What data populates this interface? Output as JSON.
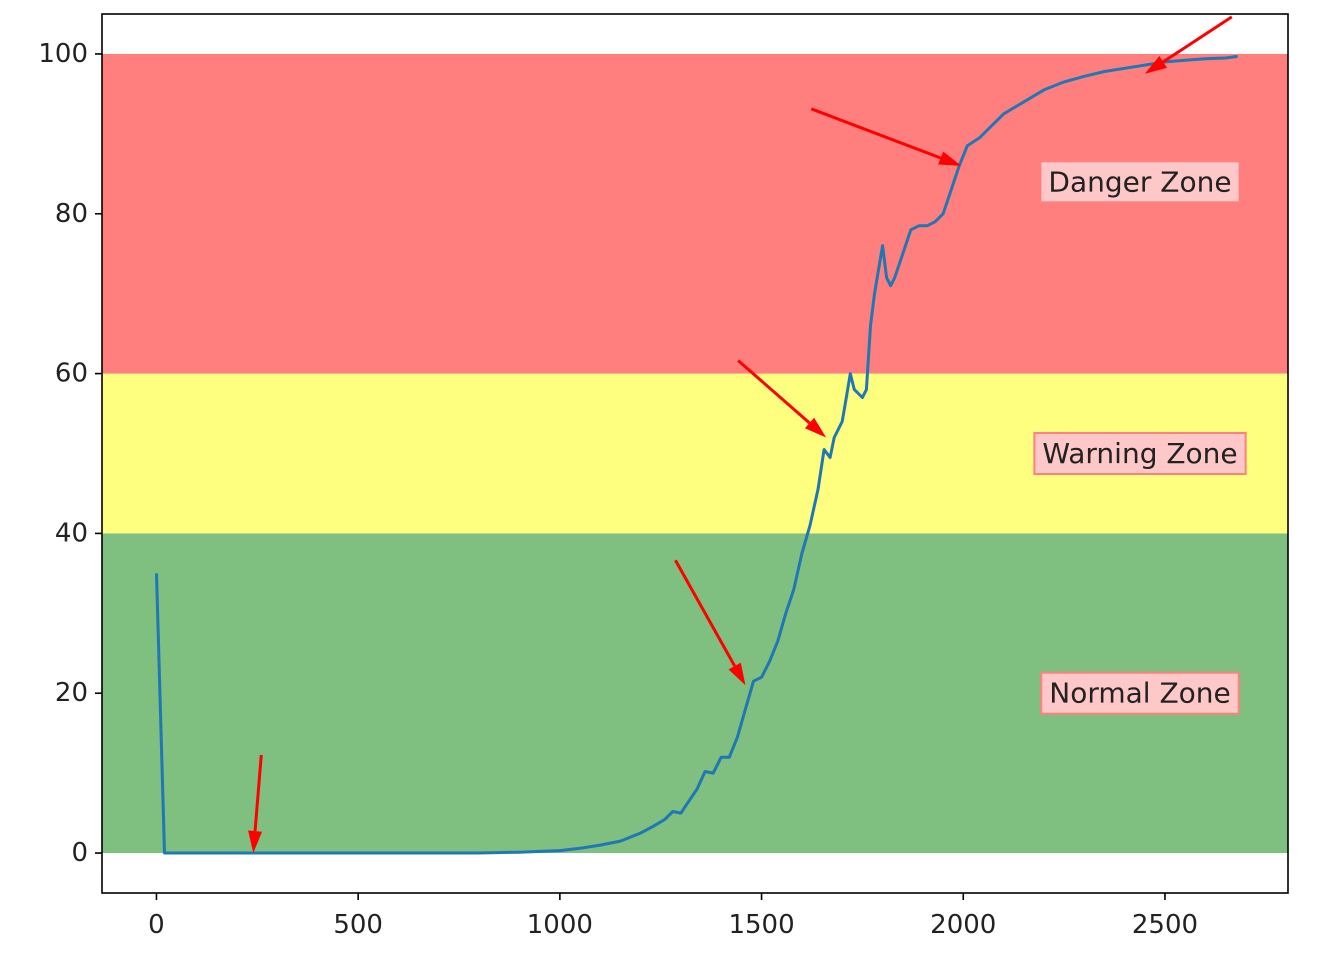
{
  "chart_data": {
    "type": "line",
    "title": "",
    "xlabel": "",
    "ylabel": "",
    "xlim": [
      -135,
      2805
    ],
    "ylim": [
      -5,
      105
    ],
    "xticks": [
      0,
      500,
      1000,
      1500,
      2000,
      2500
    ],
    "yticks": [
      0,
      20,
      40,
      60,
      80,
      100
    ],
    "grid": false,
    "zones": [
      {
        "label": "Normal Zone",
        "y0": 0,
        "y1": 40,
        "color": "#7fbf7f"
      },
      {
        "label": "Warning Zone",
        "y0": 40,
        "y1": 60,
        "color": "#ffff7f"
      },
      {
        "label": "Danger Zone",
        "y0": 60,
        "y1": 100,
        "color": "#ff7f7f"
      }
    ],
    "annotation_points": [
      {
        "x": 240,
        "y": 0
      },
      {
        "x": 1460,
        "y": 21
      },
      {
        "x": 1660,
        "y": 52
      },
      {
        "x": 1995,
        "y": 86
      },
      {
        "x": 2450,
        "y": 97.5
      }
    ],
    "series": [
      {
        "color": "#1f77b4",
        "x": [
          0,
          20,
          100,
          200,
          300,
          400,
          500,
          600,
          700,
          800,
          900,
          950,
          1000,
          1050,
          1100,
          1150,
          1200,
          1230,
          1260,
          1280,
          1300,
          1320,
          1340,
          1360,
          1380,
          1400,
          1420,
          1440,
          1460,
          1480,
          1500,
          1520,
          1540,
          1560,
          1580,
          1600,
          1620,
          1640,
          1655,
          1670,
          1680,
          1700,
          1710,
          1720,
          1730,
          1740,
          1750,
          1760,
          1770,
          1780,
          1790,
          1800,
          1810,
          1820,
          1830,
          1850,
          1870,
          1890,
          1910,
          1930,
          1950,
          1970,
          1990,
          2010,
          2040,
          2070,
          2100,
          2150,
          2200,
          2250,
          2300,
          2350,
          2400,
          2450,
          2500,
          2550,
          2600,
          2650,
          2680
        ],
        "values": [
          35,
          0,
          0,
          0,
          0,
          0,
          0,
          0,
          0,
          0,
          0.1,
          0.2,
          0.3,
          0.6,
          1.0,
          1.5,
          2.5,
          3.3,
          4.2,
          5.2,
          5.0,
          6.5,
          8.0,
          10.2,
          10.0,
          12.0,
          12.0,
          14.5,
          18.0,
          21.5,
          22.0,
          24.0,
          26.5,
          30.0,
          33.0,
          37.5,
          41.0,
          45.5,
          50.5,
          49.5,
          52.0,
          54.0,
          57.0,
          60.0,
          58.0,
          57.5,
          57.0,
          58.0,
          66.0,
          70.0,
          73.0,
          76.0,
          72.0,
          71.0,
          72.0,
          75.0,
          78.0,
          78.5,
          78.5,
          79.0,
          80.0,
          83.0,
          86.0,
          88.5,
          89.5,
          91.0,
          92.5,
          94.0,
          95.5,
          96.5,
          97.2,
          97.8,
          98.2,
          98.6,
          99.0,
          99.2,
          99.4,
          99.5,
          99.7
        ]
      }
    ]
  }
}
